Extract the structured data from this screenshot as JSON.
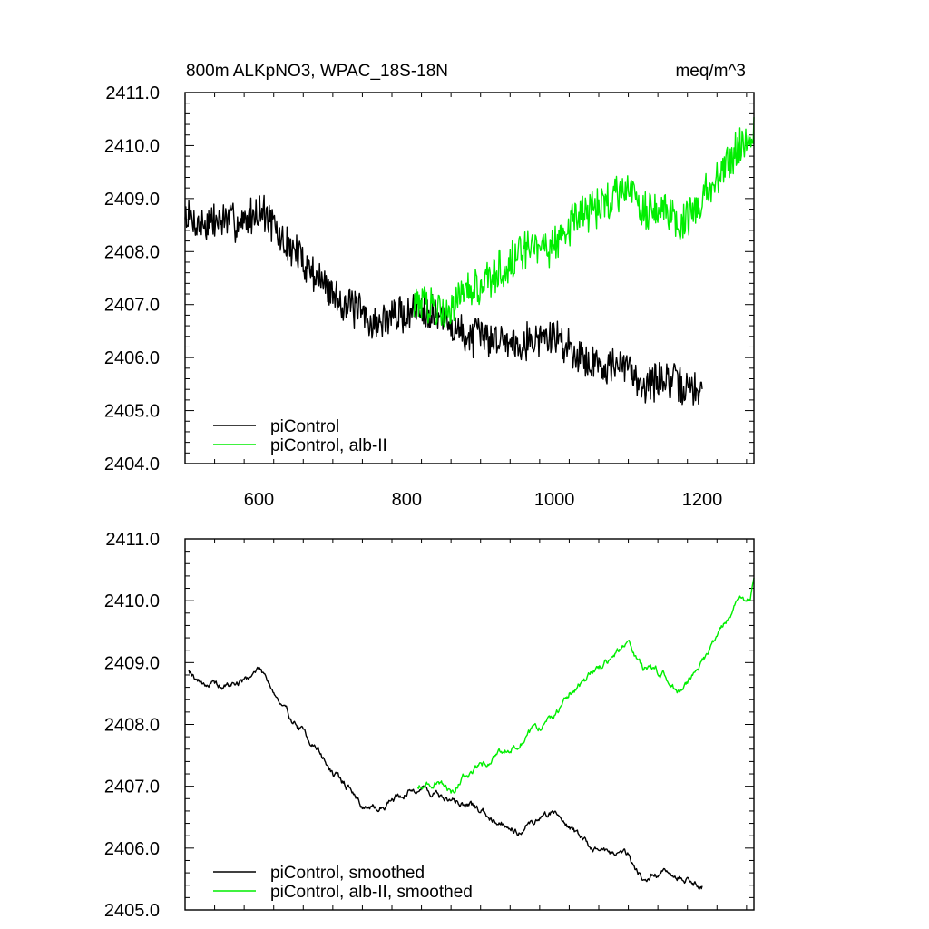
{
  "colors": {
    "picontrol": "#000000",
    "alb_ii": "#00ee00",
    "axis": "#000000"
  },
  "chart_data": [
    {
      "type": "line",
      "title_left": "800m ALKpNO3, WPAC_18S-18N",
      "title_right": "meq/m^3",
      "xlim": [
        500,
        1270
      ],
      "ylim": [
        2404.0,
        2411.0
      ],
      "xticks": [
        600,
        800,
        1000,
        1200
      ],
      "xtick_labels": [
        "600",
        "800",
        "1000",
        "1200"
      ],
      "yticks": [
        2404,
        2405,
        2406,
        2407,
        2408,
        2409,
        2410,
        2411
      ],
      "ytick_labels": [
        "2404.0",
        "2405.0",
        "2406.0",
        "2407.0",
        "2408.0",
        "2409.0",
        "2410.0",
        "2411.0"
      ],
      "legend_position": "lower-left",
      "series": [
        {
          "name": "piControl",
          "color": "#000000",
          "noise": 0.32,
          "x": [
            500,
            520,
            550,
            580,
            600,
            610,
            630,
            650,
            680,
            700,
            720,
            740,
            760,
            780,
            800,
            820,
            850,
            880,
            900,
            950,
            1000,
            1050,
            1100,
            1120,
            1150,
            1180,
            1200
          ],
          "y": [
            2408.7,
            2408.5,
            2408.6,
            2408.55,
            2408.8,
            2408.7,
            2408.2,
            2408.0,
            2407.5,
            2407.2,
            2407.0,
            2406.8,
            2406.6,
            2406.8,
            2406.8,
            2407.0,
            2406.7,
            2406.4,
            2406.4,
            2406.3,
            2406.4,
            2405.9,
            2405.8,
            2405.5,
            2405.6,
            2405.4,
            2405.4
          ]
        },
        {
          "name": "piControl, alb-II",
          "color": "#00ee00",
          "noise": 0.33,
          "x": [
            810,
            840,
            860,
            880,
            900,
            920,
            950,
            980,
            1000,
            1020,
            1050,
            1080,
            1100,
            1120,
            1150,
            1170,
            1200,
            1230,
            1250,
            1265,
            1270
          ],
          "y": [
            2407.0,
            2407.0,
            2406.9,
            2407.2,
            2407.3,
            2407.6,
            2407.9,
            2408.1,
            2408.1,
            2408.5,
            2408.8,
            2409.0,
            2409.3,
            2408.8,
            2408.8,
            2408.5,
            2409.0,
            2409.6,
            2410.0,
            2410.1,
            2410.4
          ]
        }
      ]
    },
    {
      "type": "line",
      "xlim": [
        500,
        1270
      ],
      "ylim": [
        2405.0,
        2411.0
      ],
      "xticks": [
        600,
        800,
        1000,
        1200
      ],
      "yticks": [
        2405,
        2406,
        2407,
        2408,
        2409,
        2410,
        2411
      ],
      "ytick_labels": [
        "2405.0",
        "2406.0",
        "2407.0",
        "2408.0",
        "2409.0",
        "2410.0",
        "2411.0"
      ],
      "legend_position": "lower-left",
      "series": [
        {
          "name": "piControl, smoothed",
          "color": "#000000",
          "noise": 0.08,
          "x": [
            505,
            520,
            550,
            580,
            600,
            610,
            630,
            650,
            680,
            700,
            720,
            740,
            760,
            780,
            800,
            820,
            850,
            880,
            900,
            950,
            1000,
            1050,
            1100,
            1120,
            1150,
            1180,
            1200
          ],
          "y": [
            2408.9,
            2408.7,
            2408.6,
            2408.7,
            2408.9,
            2408.8,
            2408.3,
            2408.0,
            2407.6,
            2407.2,
            2407.0,
            2406.7,
            2406.6,
            2406.8,
            2406.9,
            2407.0,
            2406.8,
            2406.7,
            2406.6,
            2406.3,
            2406.6,
            2406.0,
            2405.9,
            2405.5,
            2405.6,
            2405.5,
            2405.4
          ]
        },
        {
          "name": "piControl, alb-II, smoothed",
          "color": "#00ee00",
          "noise": 0.08,
          "x": [
            815,
            840,
            860,
            880,
            900,
            920,
            950,
            980,
            1000,
            1020,
            1050,
            1080,
            1100,
            1120,
            1150,
            1170,
            1200,
            1230,
            1250,
            1265,
            1270
          ],
          "y": [
            2407.0,
            2407.1,
            2406.9,
            2407.2,
            2407.3,
            2407.5,
            2407.7,
            2407.95,
            2408.1,
            2408.5,
            2408.8,
            2409.1,
            2409.3,
            2408.9,
            2408.8,
            2408.5,
            2409.0,
            2409.6,
            2410.0,
            2410.0,
            2410.3
          ]
        }
      ]
    }
  ]
}
